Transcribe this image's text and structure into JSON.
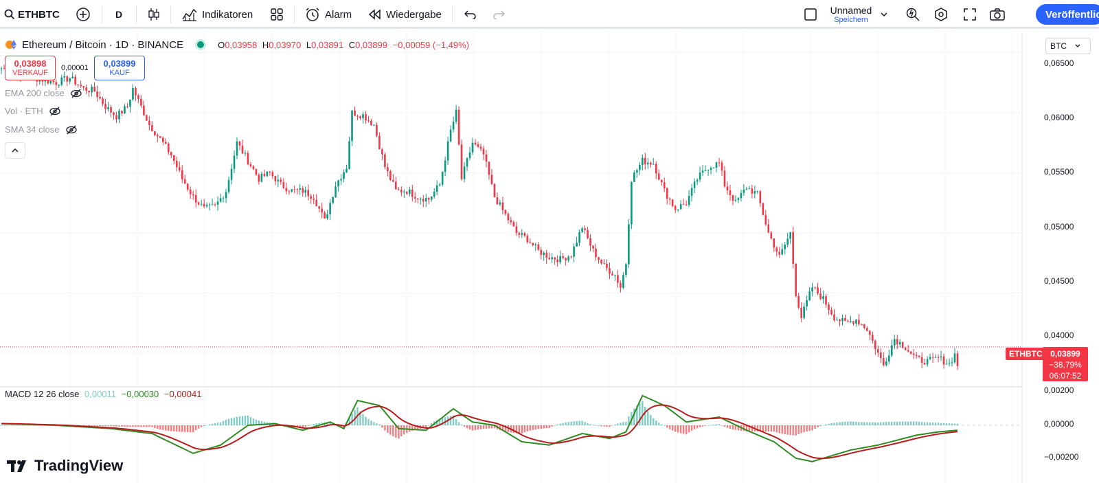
{
  "toolbar": {
    "symbol": "ETHBTC",
    "interval": "D",
    "indicators_label": "Indikatoren",
    "alarm_label": "Alarm",
    "replay_label": "Wiedergabe",
    "layout_name": "Unnamed",
    "layout_status": "Speichern",
    "publish_label": "Veröffentlichen"
  },
  "legend": {
    "title": "Ethereum / Bitcoin · 1D · BINANCE",
    "o_label": "O",
    "o_value": "0,03958",
    "h_label": "H",
    "h_value": "0,03970",
    "l_label": "L",
    "l_value": "0,03891",
    "c_label": "C",
    "c_value": "0,03899",
    "change": "−0,00059 (−1,49%)"
  },
  "trade": {
    "sell_price": "0,03898",
    "sell_label": "VERKAUF",
    "spread": "0,00001",
    "buy_price": "0,03899",
    "buy_label": "KAUF"
  },
  "indicators": [
    {
      "label": "EMA 200 close"
    },
    {
      "label": "Vol · ETH"
    },
    {
      "label": "SMA 34 close"
    }
  ],
  "macd": {
    "label": "MACD 12 26 close",
    "hist": "0,00011",
    "macd": "−0,00030",
    "signal": "−0,00041"
  },
  "price_axis": {
    "currency": "BTC",
    "ticks": [
      "0,06500",
      "0,06000",
      "0,05500",
      "0,05000",
      "0,04500",
      "0,04000"
    ],
    "macd_ticks": [
      "0,00200",
      "0,00000",
      "−0,00200"
    ],
    "last_ticker": "ETHBTC",
    "last_price": "0,03899",
    "last_change": "−38,79%",
    "countdown": "06:07:52"
  },
  "brand": {
    "name": "TradingView"
  },
  "colors": {
    "up": "#089981",
    "down": "#f23645",
    "accent": "#2962ff",
    "macd_line": "#2e8b22",
    "signal_line": "#b71c1c"
  },
  "chart_data": {
    "type": "line",
    "price_keypoints": [
      [
        0,
        0.0637
      ],
      [
        10,
        0.063
      ],
      [
        20,
        0.0625
      ],
      [
        25,
        0.0629
      ],
      [
        30,
        0.062
      ],
      [
        34,
        0.0618
      ],
      [
        38,
        0.0605
      ],
      [
        42,
        0.0597
      ],
      [
        46,
        0.0605
      ],
      [
        48,
        0.062
      ],
      [
        50,
        0.061
      ],
      [
        54,
        0.059
      ],
      [
        58,
        0.0578
      ],
      [
        62,
        0.0565
      ],
      [
        66,
        0.0545
      ],
      [
        70,
        0.053
      ],
      [
        74,
        0.052
      ],
      [
        78,
        0.0522
      ],
      [
        82,
        0.0535
      ],
      [
        86,
        0.0575
      ],
      [
        90,
        0.056
      ],
      [
        94,
        0.0545
      ],
      [
        98,
        0.055
      ],
      [
        102,
        0.054
      ],
      [
        106,
        0.0535
      ],
      [
        110,
        0.0535
      ],
      [
        114,
        0.053
      ],
      [
        118,
        0.051
      ],
      [
        122,
        0.054
      ],
      [
        126,
        0.0555
      ],
      [
        128,
        0.06
      ],
      [
        132,
        0.0598
      ],
      [
        136,
        0.059
      ],
      [
        140,
        0.0555
      ],
      [
        144,
        0.0535
      ],
      [
        148,
        0.0535
      ],
      [
        152,
        0.053
      ],
      [
        156,
        0.0528
      ],
      [
        160,
        0.054
      ],
      [
        164,
        0.0585
      ],
      [
        166,
        0.06
      ],
      [
        168,
        0.0545
      ],
      [
        172,
        0.0575
      ],
      [
        176,
        0.0565
      ],
      [
        180,
        0.053
      ],
      [
        184,
        0.0515
      ],
      [
        188,
        0.05
      ],
      [
        192,
        0.0495
      ],
      [
        196,
        0.0485
      ],
      [
        200,
        0.048
      ],
      [
        204,
        0.0478
      ],
      [
        208,
        0.0482
      ],
      [
        212,
        0.0505
      ],
      [
        216,
        0.0485
      ],
      [
        220,
        0.0472
      ],
      [
        224,
        0.0465
      ],
      [
        226,
        0.0455
      ],
      [
        228,
        0.0475
      ],
      [
        230,
        0.0545
      ],
      [
        234,
        0.056
      ],
      [
        238,
        0.0558
      ],
      [
        242,
        0.0535
      ],
      [
        246,
        0.052
      ],
      [
        250,
        0.0525
      ],
      [
        254,
        0.0545
      ],
      [
        258,
        0.0555
      ],
      [
        262,
        0.0558
      ],
      [
        264,
        0.054
      ],
      [
        268,
        0.0525
      ],
      [
        272,
        0.0538
      ],
      [
        276,
        0.0532
      ],
      [
        280,
        0.05
      ],
      [
        284,
        0.048
      ],
      [
        288,
        0.05
      ],
      [
        290,
        0.045
      ],
      [
        292,
        0.043
      ],
      [
        296,
        0.0455
      ],
      [
        300,
        0.0445
      ],
      [
        304,
        0.043
      ],
      [
        308,
        0.0425
      ],
      [
        312,
        0.0428
      ],
      [
        316,
        0.042
      ],
      [
        320,
        0.04
      ],
      [
        322,
        0.039
      ],
      [
        326,
        0.0412
      ],
      [
        330,
        0.0405
      ],
      [
        334,
        0.0395
      ],
      [
        338,
        0.0393
      ],
      [
        342,
        0.0396
      ],
      [
        346,
        0.0391
      ],
      [
        348,
        0.0399
      ],
      [
        349,
        0.039
      ]
    ],
    "macd_keypoints": [
      [
        0,
        0.0001
      ],
      [
        20,
        0.0
      ],
      [
        40,
        -0.0002
      ],
      [
        55,
        -0.0005
      ],
      [
        70,
        -0.0017
      ],
      [
        80,
        -0.0012
      ],
      [
        90,
        0.0
      ],
      [
        100,
        0.0001
      ],
      [
        110,
        -0.0003
      ],
      [
        120,
        0.0002
      ],
      [
        125,
        -0.0002
      ],
      [
        130,
        0.0015
      ],
      [
        138,
        0.0012
      ],
      [
        145,
        -0.0002
      ],
      [
        155,
        -0.0003
      ],
      [
        165,
        0.001
      ],
      [
        172,
        0.0002
      ],
      [
        180,
        0.0
      ],
      [
        190,
        -0.001
      ],
      [
        200,
        -0.0012
      ],
      [
        212,
        -0.0005
      ],
      [
        222,
        -0.0008
      ],
      [
        228,
        -0.0004
      ],
      [
        234,
        0.0018
      ],
      [
        242,
        0.0012
      ],
      [
        250,
        0.0002
      ],
      [
        262,
        0.0005
      ],
      [
        272,
        -0.0003
      ],
      [
        282,
        -0.001
      ],
      [
        290,
        -0.002
      ],
      [
        296,
        -0.0022
      ],
      [
        310,
        -0.0015
      ],
      [
        320,
        -0.0012
      ],
      [
        334,
        -0.0006
      ],
      [
        342,
        -0.0004
      ],
      [
        349,
        -0.0003
      ]
    ],
    "y_range": [
      0.0372,
      0.0668
    ],
    "macd_range": [
      -0.0025,
      0.0025
    ]
  }
}
